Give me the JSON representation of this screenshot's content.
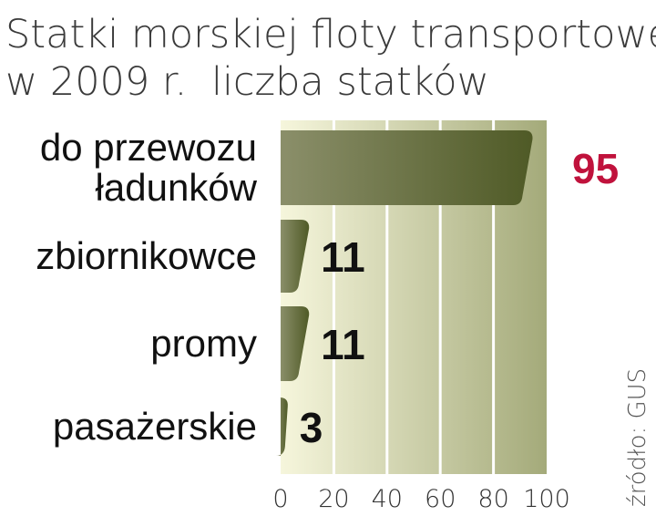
{
  "chart_data": {
    "type": "bar",
    "orientation": "horizontal",
    "title": "Statki morskiej floty transportowej",
    "subtitle_year": "w 2009 r.",
    "subtitle_unit": "liczba statków",
    "categories": [
      [
        "do przewozu",
        "ładunków"
      ],
      [
        "zbiornikowce"
      ],
      [
        "promy"
      ],
      [
        "pasażerskie"
      ]
    ],
    "values": [
      95,
      11,
      11,
      3
    ],
    "value_labels": [
      "95",
      "11",
      "11",
      "3"
    ],
    "highlight_index": 0,
    "xlim": [
      0,
      100
    ],
    "xticks": [
      0,
      20,
      40,
      60,
      80,
      100
    ],
    "grid": true,
    "source": "źródło: GUS",
    "colors": {
      "bar_light": "#8b8f6a",
      "bar_dark": "#4f5a26",
      "panel_light": "#f6f6dc",
      "panel_dark": "#a4aa7a",
      "highlight_value": "#c0123c",
      "text": "#111111"
    }
  }
}
